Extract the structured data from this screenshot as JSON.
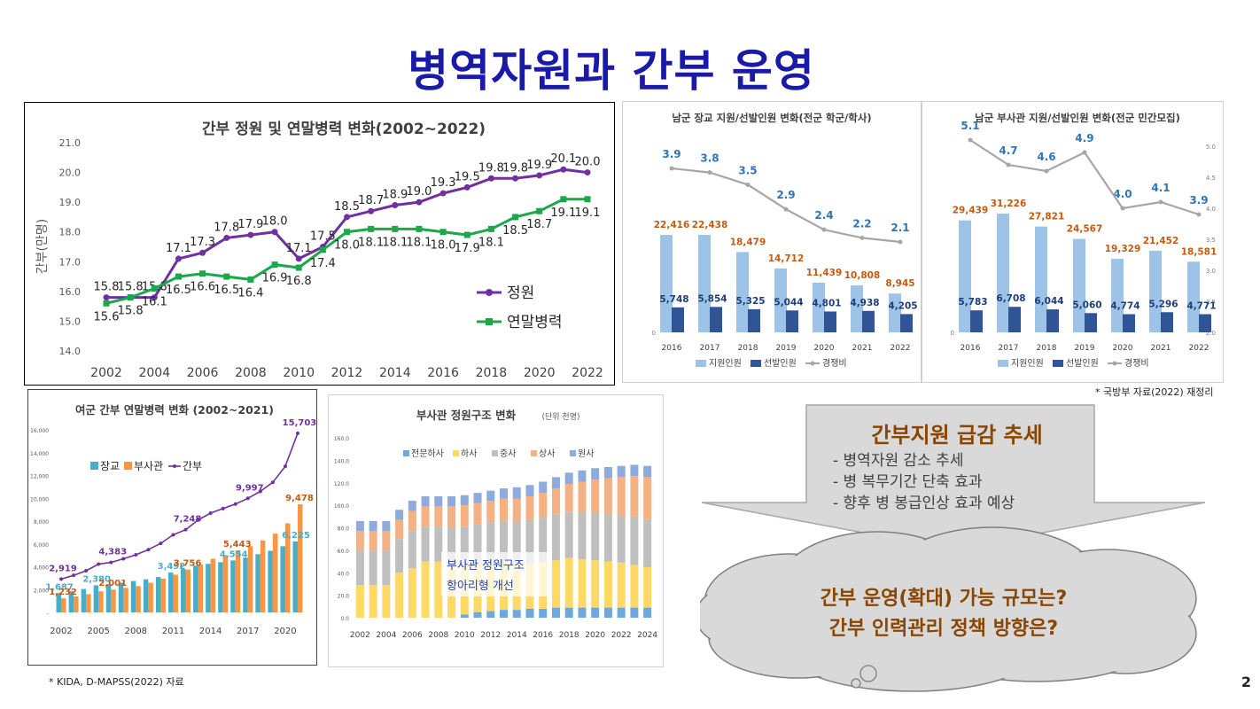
{
  "title": "병역자원과 간부 운영",
  "page_number": "2",
  "notes": {
    "source_mnd": "* 국방부 자료(2022) 재정리",
    "source_kida": "* KIDA, D-MAPSS(2022) 자료"
  },
  "callout": {
    "title": "간부지원 급감 추세",
    "bullets": [
      "- 병역자원 감소 추세",
      "- 병 복무기간 단축 효과",
      "- 향후 병 봉급인상 효과 예상"
    ]
  },
  "cloud": {
    "lines": [
      "간부 운영(확대) 가능 규모는?",
      "간부 인력관리 정책 방향은?"
    ]
  },
  "colors": {
    "title": "#1a1aa8",
    "quota": "#7030a0",
    "yearend": "#1aa84a",
    "applicant": "#9dc3e6",
    "selected": "#2f5597",
    "ratio": "#a6a6a6",
    "accent_orange": "#c55a11",
    "officer": "#4bacc6",
    "nco": "#f79646",
    "specialist": "#6fa8dc",
    "staff_sgt": "#ffd966",
    "sgt_first": "#bfbfbf",
    "master_sgt": "#f4b183",
    "sgt_major": "#8faadc"
  },
  "chart_data": [
    {
      "type": "line",
      "title": "간부 정원 및 연말병력 변화(2002~2022)",
      "ylabel": "간부(만명)",
      "xlabel": "",
      "ylim": [
        14.0,
        21.0
      ],
      "yticks": [
        "21.0",
        "20.0",
        "19.0",
        "18.0",
        "17.0",
        "16.0",
        "15.0",
        "14.0"
      ],
      "xticks": [
        "2002",
        "2004",
        "2006",
        "2008",
        "2010",
        "2012",
        "2014",
        "2016",
        "2018",
        "2020",
        "2022"
      ],
      "x": [
        2002,
        2003,
        2004,
        2005,
        2006,
        2007,
        2008,
        2009,
        2010,
        2011,
        2012,
        2013,
        2014,
        2015,
        2016,
        2017,
        2018,
        2019,
        2020,
        2021,
        2022
      ],
      "legend": [
        "정원",
        "연말병력"
      ],
      "series": [
        {
          "name": "정원",
          "values": [
            15.8,
            15.8,
            15.8,
            17.1,
            17.3,
            17.8,
            17.9,
            18.0,
            17.1,
            17.5,
            18.5,
            18.7,
            18.9,
            19.0,
            19.3,
            19.5,
            19.8,
            19.8,
            19.9,
            20.1,
            20.0
          ],
          "labels": [
            "15.8",
            "15.8",
            "15.8",
            "17.1",
            "17.3",
            "17.8",
            "17.9",
            "18.0",
            "17.1",
            "17.5",
            "18.5",
            "18.7",
            "18.9",
            "19.0",
            "19.3",
            "19.5",
            "19.8",
            "19.8",
            "19.9",
            "20.1",
            "20.0"
          ]
        },
        {
          "name": "연말병력",
          "values": [
            15.6,
            15.8,
            16.1,
            16.5,
            16.6,
            16.5,
            16.4,
            16.9,
            16.8,
            17.4,
            18.0,
            18.1,
            18.1,
            18.1,
            18.0,
            17.9,
            18.1,
            18.5,
            18.7,
            19.1,
            19.1
          ],
          "labels": [
            "15.6",
            "15.8",
            "16.1",
            "16.5",
            "16.6",
            "16.5",
            "16.4",
            "16.9",
            "16.8",
            "17.4",
            "18.0",
            "18.1",
            "18.1",
            "18.1",
            "18.0",
            "17.9",
            "18.1",
            "18.5",
            "18.7",
            "19.1",
            "19.1"
          ]
        }
      ]
    },
    {
      "type": "bar",
      "title": "남군 장교 지원/선발인원 변화(전군 학군/학사)",
      "categories": [
        "2016",
        "2017",
        "2018",
        "2019",
        "2020",
        "2021",
        "2022"
      ],
      "left_axis": [
        "0"
      ],
      "legend": [
        "지원인원",
        "선발인원",
        "경쟁비"
      ],
      "series": [
        {
          "name": "지원인원",
          "values": [
            22416,
            22438,
            18479,
            14712,
            11439,
            10808,
            8945
          ],
          "labels": [
            "22,416",
            "22,438",
            "18,479",
            "14,712",
            "11,439",
            "10,808",
            "8,945"
          ]
        },
        {
          "name": "선발인원",
          "values": [
            5748,
            5854,
            5325,
            5044,
            4801,
            4938,
            4205
          ],
          "labels": [
            "5,748",
            "5,854",
            "5,325",
            "5,044",
            "4,801",
            "4,938",
            "4,205"
          ]
        },
        {
          "name": "경쟁비",
          "values": [
            3.9,
            3.8,
            3.5,
            2.9,
            2.4,
            2.2,
            2.1
          ],
          "labels": [
            "3.9",
            "3.8",
            "3.5",
            "2.9",
            "2.4",
            "2.2",
            "2.1"
          ]
        }
      ]
    },
    {
      "type": "bar",
      "title": "남군 부사관 지원/선발인원 변화(전군 민간모집)",
      "categories": [
        "2016",
        "2017",
        "2018",
        "2019",
        "2020",
        "2021",
        "2022"
      ],
      "left_axis": [
        "0"
      ],
      "right_axis": [
        "5.0",
        "4.5",
        "4.0",
        "3.5",
        "3.0",
        "2.5",
        "2.0"
      ],
      "legend": [
        "지원인원",
        "선발인원",
        "경쟁비"
      ],
      "series": [
        {
          "name": "지원인원",
          "values": [
            29439,
            31226,
            27821,
            24567,
            19329,
            21452,
            18581
          ],
          "labels": [
            "29,439",
            "31,226",
            "27,821",
            "24,567",
            "19,329",
            "21,452",
            "18,581"
          ]
        },
        {
          "name": "선발인원",
          "values": [
            5783,
            6708,
            6044,
            5060,
            4774,
            5296,
            4771
          ],
          "labels": [
            "5,783",
            "6,708",
            "6,044",
            "5,060",
            "4,774",
            "5,296",
            "4,771"
          ]
        },
        {
          "name": "경쟁비",
          "values": [
            5.1,
            4.7,
            4.6,
            4.9,
            4.0,
            4.1,
            3.9
          ],
          "labels": [
            "5.1",
            "4.7",
            "4.6",
            "4.9",
            "4.0",
            "4.1",
            "3.9"
          ]
        }
      ]
    },
    {
      "type": "bar",
      "title": "여군 간부 연말병력 변화 (2002~2021)",
      "yticks": [
        "16,000",
        "14,000",
        "12,000",
        "10,000",
        "8,000",
        "6,000",
        "4,000",
        "2,000",
        "-"
      ],
      "ylim": [
        0,
        16000
      ],
      "xticks": [
        "2002",
        "2005",
        "2008",
        "2011",
        "2014",
        "2017",
        "2020"
      ],
      "x": [
        2002,
        2003,
        2004,
        2005,
        2006,
        2007,
        2008,
        2009,
        2010,
        2011,
        2012,
        2013,
        2014,
        2015,
        2016,
        2017,
        2018,
        2019,
        2020,
        2021
      ],
      "legend": [
        "장교",
        "부사관",
        "간부"
      ],
      "series": [
        {
          "name": "장교",
          "values": [
            1687,
            1850,
            2050,
            2380,
            2480,
            2600,
            2750,
            2900,
            3100,
            3492,
            3800,
            4100,
            4250,
            4400,
            4554,
            4800,
            5100,
            5400,
            5800,
            6225
          ]
        },
        {
          "name": "부사관",
          "values": [
            1232,
            1400,
            1600,
            1850,
            2001,
            2150,
            2300,
            2600,
            2950,
            3300,
            3756,
            4200,
            4700,
            5000,
            5443,
            5800,
            6300,
            6900,
            7800,
            9478
          ]
        },
        {
          "name": "간부",
          "values": [
            2919,
            3250,
            3650,
            4230,
            4383,
            4700,
            5050,
            5500,
            6050,
            6800,
            7248,
            8100,
            8700,
            9100,
            9500,
            9997,
            10600,
            11400,
            12800,
            15703
          ]
        }
      ],
      "point_labels": {
        "장교": {
          "2002": "1,687",
          "2005": "2,380",
          "2011": "3,492",
          "2016": "4,554",
          "2021": "6,225"
        },
        "부사관": {
          "2002": "1,232",
          "2006": "2,001",
          "2012": "3,756",
          "2016": "5,443",
          "2021": "9,478"
        },
        "간부": {
          "2002": "2,919",
          "2006": "4,383",
          "2012": "7,248",
          "2017": "9,997",
          "2021": "15,703"
        }
      }
    },
    {
      "type": "bar",
      "stacked": true,
      "title": "부사관 정원구조 변화",
      "subtitle": "(단위 천명)",
      "yticks": [
        "160.0",
        "140.0",
        "120.0",
        "100.0",
        "80.0",
        "60.0",
        "40.0",
        "20.0",
        "0.0"
      ],
      "ylim": [
        0,
        160
      ],
      "xticks": [
        "2002",
        "2004",
        "2006",
        "2008",
        "2010",
        "2012",
        "2014",
        "2016",
        "2018",
        "2020",
        "2022",
        "2024"
      ],
      "x": [
        2002,
        2003,
        2004,
        2005,
        2006,
        2007,
        2008,
        2009,
        2010,
        2011,
        2012,
        2013,
        2014,
        2015,
        2016,
        2017,
        2018,
        2019,
        2020,
        2021,
        2022,
        2023,
        2024
      ],
      "legend": [
        "전문하사",
        "하사",
        "중사",
        "상사",
        "원사"
      ],
      "annotation": [
        "부사관 정원구조",
        "항아리형 개선"
      ],
      "series": [
        {
          "name": "전문하사",
          "values": [
            0,
            0,
            0,
            0,
            0,
            0,
            0,
            0,
            3,
            5,
            6,
            7,
            7,
            8,
            8,
            9,
            9,
            9,
            9,
            9,
            9,
            9,
            9
          ]
        },
        {
          "name": "하사",
          "values": [
            29,
            29,
            29,
            40,
            44,
            50,
            50,
            47,
            44,
            42,
            42,
            41,
            41,
            40,
            41,
            42,
            44,
            43,
            42,
            41,
            40,
            38,
            36
          ]
        },
        {
          "name": "중사",
          "values": [
            31,
            31,
            31,
            30,
            33,
            31,
            31,
            33,
            34,
            36,
            37,
            38,
            38,
            39,
            40,
            41,
            41,
            42,
            42,
            42,
            42,
            43,
            42
          ]
        },
        {
          "name": "상사",
          "values": [
            17,
            17,
            17,
            17,
            18,
            18,
            18,
            19,
            19,
            19,
            19,
            20,
            20,
            21,
            22,
            23,
            25,
            27,
            30,
            32,
            34,
            36,
            38
          ]
        },
        {
          "name": "원사",
          "values": [
            9,
            9,
            9,
            9,
            9,
            9,
            9,
            9,
            9,
            9,
            9,
            9,
            10,
            10,
            10,
            10,
            10,
            10,
            10,
            10,
            10,
            10,
            10
          ]
        }
      ]
    }
  ]
}
